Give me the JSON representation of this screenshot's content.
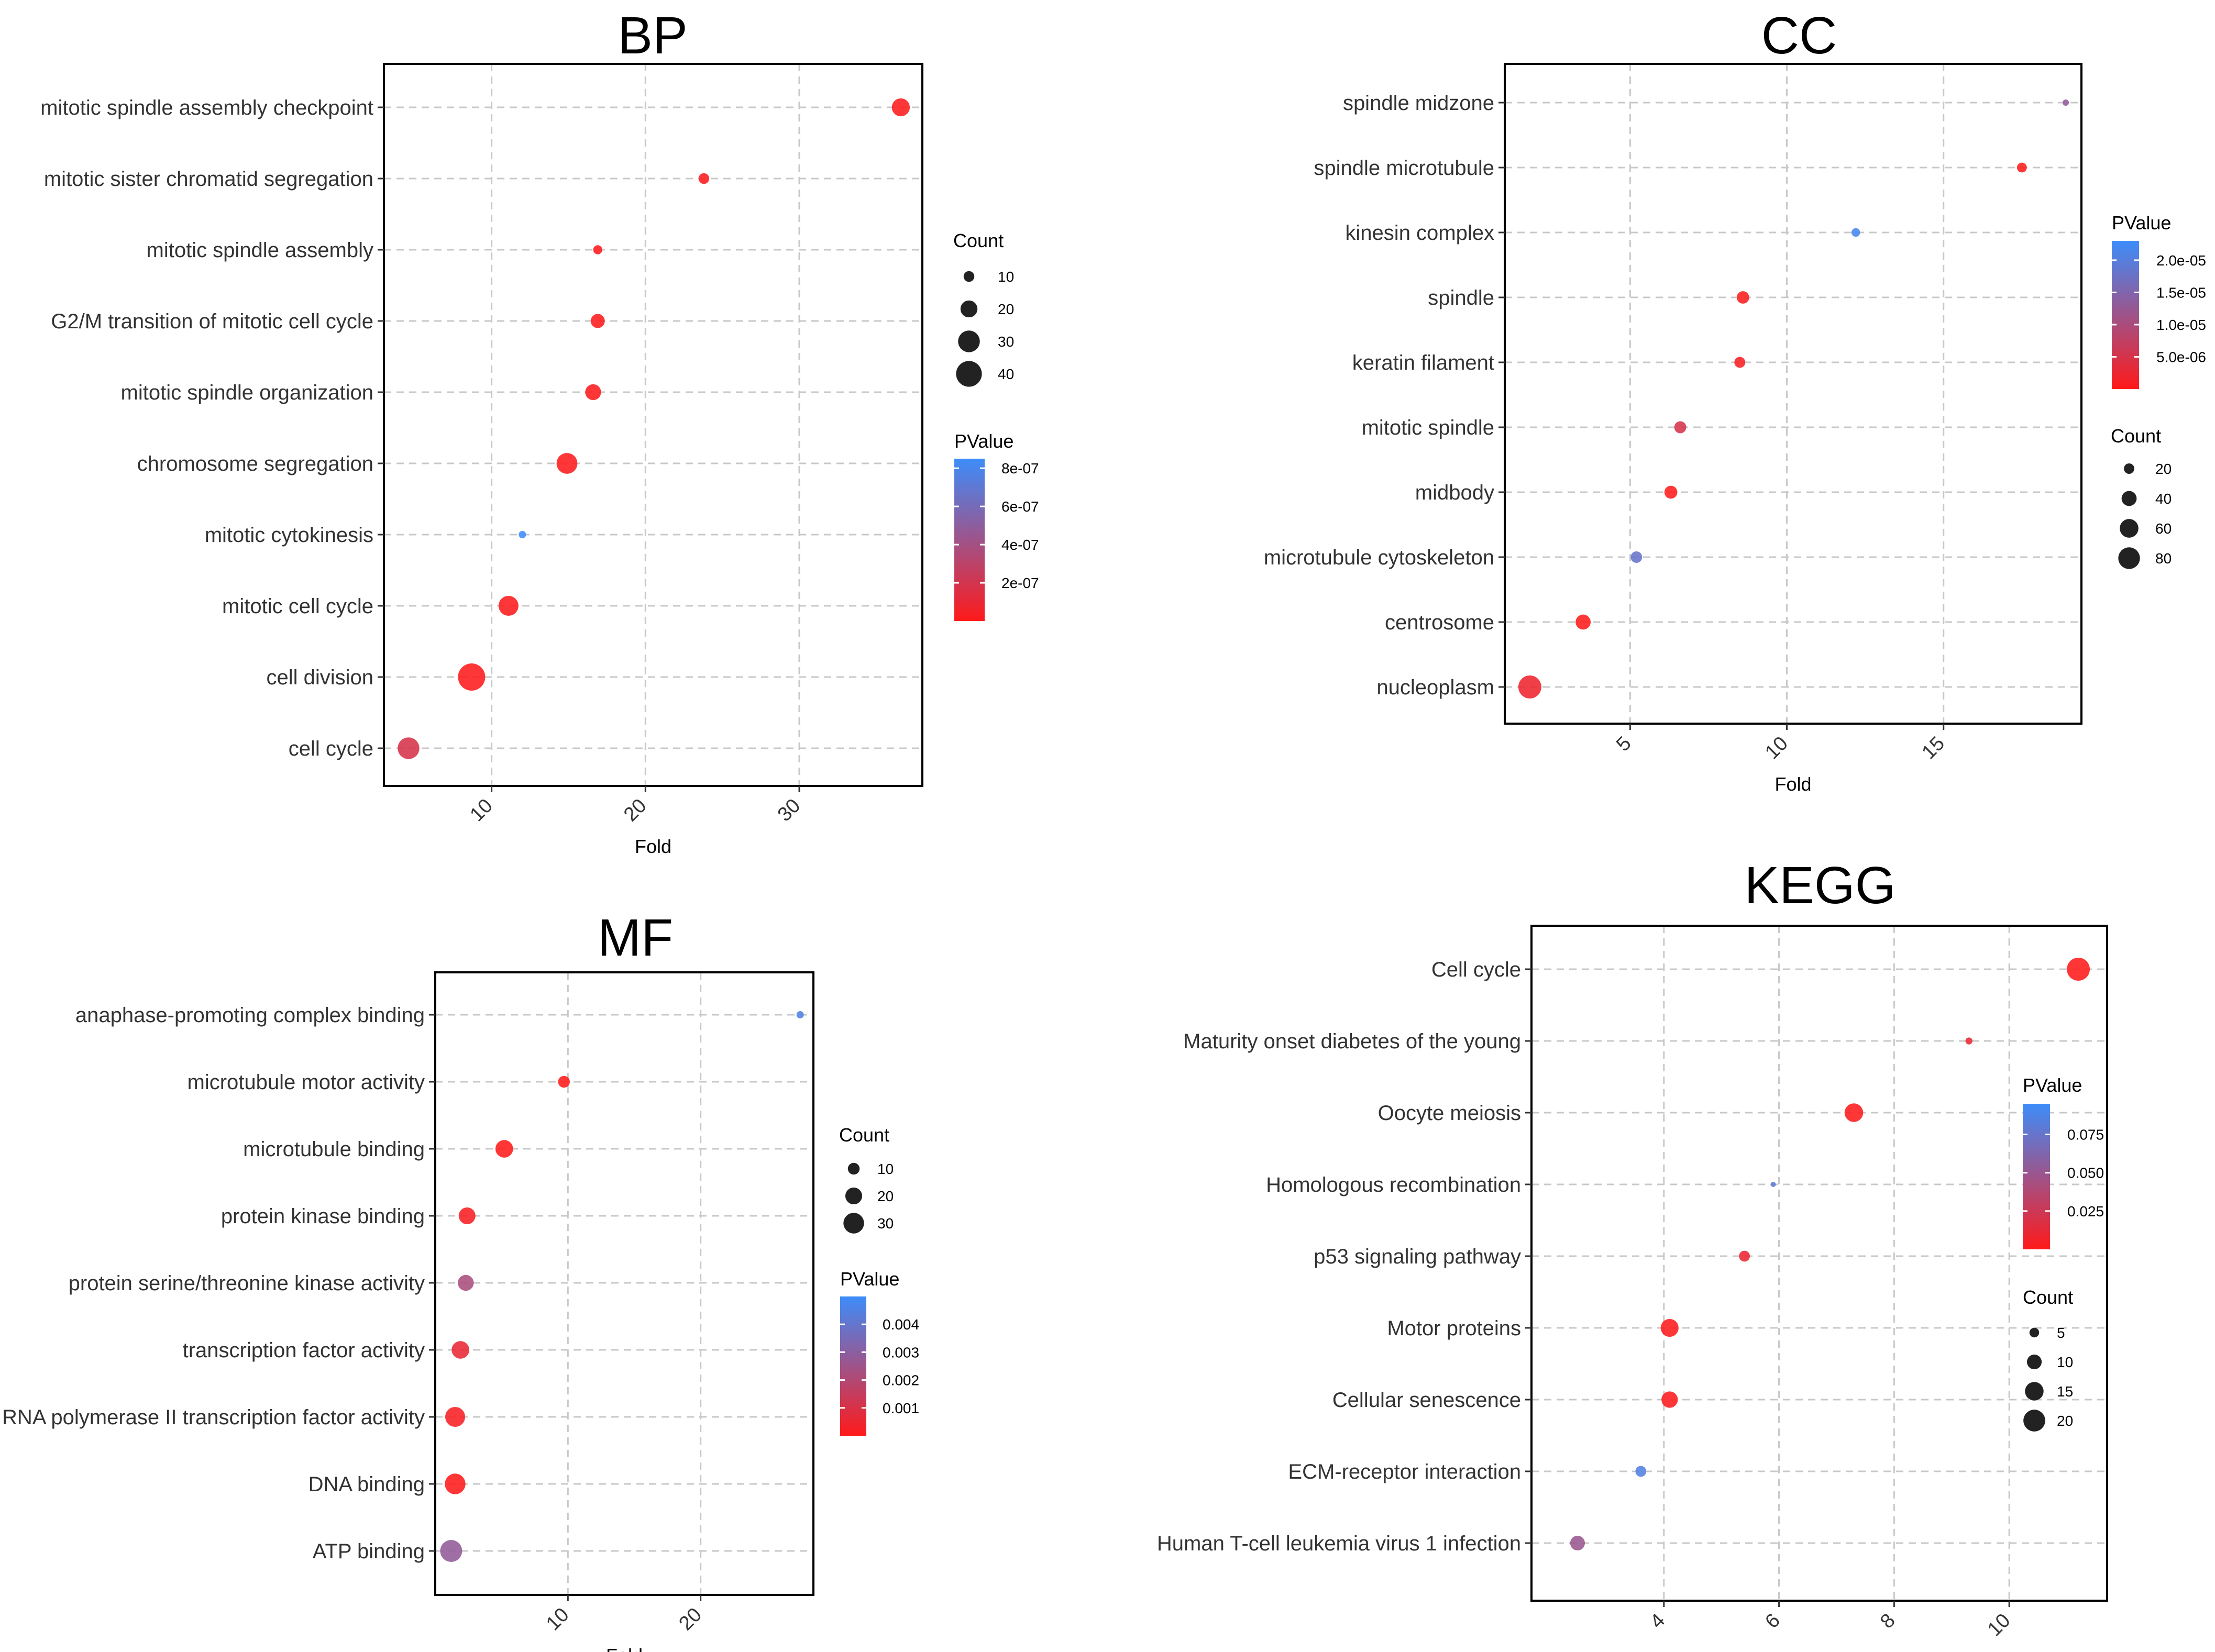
{
  "chart_data": [
    {
      "id": "bp",
      "type": "scatter",
      "title": "BP",
      "xlabel": "Fold",
      "ylabel": "",
      "xlim": [
        3,
        38
      ],
      "xticks": [
        10,
        20,
        30
      ],
      "xtick_labels": [
        "10",
        "20",
        "30"
      ],
      "grid": true,
      "categories": [
        "mitotic spindle assembly checkpoint",
        "mitotic sister chromatid segregation",
        "mitotic spindle assembly",
        "G2/M transition of mitotic cell cycle",
        "mitotic spindle organization",
        "chromosome segregation",
        "mitotic cytokinesis",
        "mitotic cell cycle",
        "cell division",
        "cell cycle"
      ],
      "fold": [
        36.6,
        23.8,
        16.9,
        16.9,
        16.6,
        14.9,
        12.0,
        11.1,
        8.7,
        4.6
      ],
      "count": [
        22,
        10,
        8,
        15,
        18,
        28,
        6,
        26,
        44,
        30
      ],
      "pvalue": [
        1e-08,
        1e-08,
        1e-08,
        1e-08,
        1e-08,
        1e-08,
        8.5e-07,
        1e-08,
        1e-08,
        1.8e-07
      ],
      "size_legend": {
        "title": "Count",
        "values": [
          10,
          20,
          30,
          40
        ],
        "labels": [
          "10",
          "20",
          "30",
          "40"
        ]
      },
      "color_legend": {
        "title": "PValue",
        "min": 0,
        "max": 8.5e-07,
        "ticks": [
          2e-07,
          4e-07,
          6e-07,
          8e-07
        ],
        "labels": [
          "2e-07",
          "4e-07",
          "6e-07",
          "8e-07"
        ]
      }
    },
    {
      "id": "cc",
      "type": "scatter",
      "title": "CC",
      "xlabel": "Fold",
      "ylabel": "",
      "xlim": [
        1,
        19.4
      ],
      "xticks": [
        5,
        10,
        15
      ],
      "xtick_labels": [
        "5",
        "10",
        "15"
      ],
      "grid": true,
      "categories": [
        "spindle midzone",
        "spindle microtubule",
        "kinesin complex",
        "spindle",
        "keratin filament",
        "mitotic spindle",
        "midbody",
        "microtubule cytoskeleton",
        "centrosome",
        "nucleoplasm"
      ],
      "fold": [
        18.9,
        17.5,
        12.2,
        8.6,
        8.5,
        6.6,
        6.3,
        5.2,
        3.5,
        1.8
      ],
      "count": [
        8,
        18,
        14,
        28,
        22,
        26,
        30,
        24,
        40,
        90
      ],
      "pvalue": [
        1.3e-05,
        1e-07,
        2.2e-05,
        1e-07,
        1e-06,
        5e-06,
        1e-07,
        1.8e-05,
        1e-07,
        2e-06
      ],
      "size_legend": {
        "title": "Count",
        "values": [
          20,
          40,
          60,
          80
        ],
        "labels": [
          "20",
          "40",
          "60",
          "80"
        ]
      },
      "color_legend": {
        "title": "PValue",
        "min": 0,
        "max": 2.3e-05,
        "ticks": [
          5e-06,
          1e-05,
          1.5e-05,
          2e-05
        ],
        "labels": [
          "5.0e-06",
          "1.0e-05",
          "1.5e-05",
          "2.0e-05"
        ]
      }
    },
    {
      "id": "mf",
      "type": "scatter",
      "title": "MF",
      "xlabel": "Fold",
      "ylabel": "",
      "xlim": [
        0,
        28.5
      ],
      "xticks": [
        10,
        20
      ],
      "xtick_labels": [
        "10",
        "20"
      ],
      "grid": true,
      "categories": [
        "anaphase-promoting complex binding",
        "microtubule motor activity",
        "microtubule binding",
        "protein kinase binding",
        "protein serine/threonine kinase activity",
        "transcription factor activity",
        "RNA polymerase II transcription factor activity",
        "DNA binding",
        "ATP binding"
      ],
      "fold": [
        27.5,
        9.7,
        5.2,
        2.4,
        2.3,
        1.9,
        1.5,
        1.5,
        1.2
      ],
      "count": [
        4,
        10,
        22,
        20,
        18,
        22,
        28,
        30,
        34
      ],
      "pvalue": [
        0.0045,
        1e-05,
        1e-05,
        0.0002,
        0.0022,
        0.0006,
        0.0002,
        1e-05,
        0.0028
      ],
      "size_legend": {
        "title": "Count",
        "values": [
          10,
          20,
          30
        ],
        "labels": [
          "10",
          "20",
          "30"
        ]
      },
      "color_legend": {
        "title": "PValue",
        "min": 0,
        "max": 0.005,
        "ticks": [
          0.001,
          0.002,
          0.003,
          0.004
        ],
        "labels": [
          "0.001",
          "0.002",
          "0.003",
          "0.004"
        ]
      }
    },
    {
      "id": "kegg",
      "type": "scatter",
      "title": "KEGG",
      "xlabel": "Fold",
      "ylabel": "",
      "xlim": [
        1.7,
        11.7
      ],
      "xticks": [
        4,
        6,
        8,
        10
      ],
      "xtick_labels": [
        "4",
        "6",
        "8",
        "10"
      ],
      "grid": true,
      "categories": [
        "Cell cycle",
        "Maturity onset diabetes of the young",
        "Oocyte meiosis",
        "Homologous recombination",
        "p53 signaling pathway",
        "Motor proteins",
        "Cellular senescence",
        "ECM-receptor interaction",
        "Human T-cell leukemia virus 1 infection"
      ],
      "fold": [
        11.2,
        9.3,
        7.3,
        5.9,
        5.4,
        4.1,
        4.1,
        3.6,
        2.5
      ],
      "count": [
        22,
        3,
        15,
        2,
        6,
        14,
        12,
        6,
        10
      ],
      "pvalue": [
        0.0001,
        0.01,
        0.001,
        0.08,
        0.01,
        0.001,
        0.001,
        0.085,
        0.05
      ],
      "size_legend": {
        "title": "Count",
        "values": [
          5,
          10,
          15,
          20
        ],
        "labels": [
          "5",
          "10",
          "15",
          "20"
        ]
      },
      "color_legend": {
        "title": "PValue",
        "min": 0,
        "max": 0.095,
        "ticks": [
          0.025,
          0.05,
          0.075
        ],
        "labels": [
          "0.025",
          "0.050",
          "0.075"
        ]
      }
    }
  ],
  "colors": {
    "low_pvalue": "#ff1a1a",
    "high_pvalue": "#3d8dfa",
    "legend_dot": "#222222",
    "grid": "#c8c8c8",
    "frame": "#000000"
  }
}
